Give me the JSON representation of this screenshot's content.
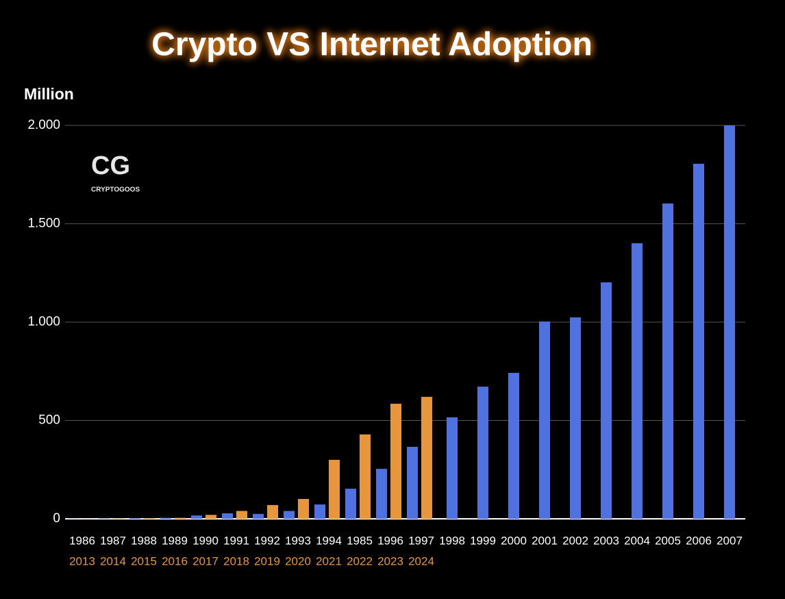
{
  "chart_data": {
    "type": "bar",
    "title": "Crypto VS Internet Adoption",
    "y_label": "Million",
    "watermark": {
      "mark": "CG",
      "text": "CRYPTOGOOS"
    },
    "categories": [
      "1986",
      "1987",
      "1988",
      "1989",
      "1990",
      "1991",
      "1992",
      "1993",
      "1994",
      "1985",
      "1996",
      "1997",
      "1998",
      "1999",
      "2000",
      "2001",
      "2002",
      "2003",
      "2004",
      "2005",
      "2006",
      "2007"
    ],
    "secondary_categories": [
      "2013",
      "2014",
      "2015",
      "2016",
      "2017",
      "2018",
      "2019",
      "2020",
      "2021",
      "2022",
      "2023",
      "2024",
      null,
      null,
      null,
      null,
      null,
      null,
      null,
      null,
      null,
      null
    ],
    "series": [
      {
        "color": "#4f72e0",
        "label_color": "#ffffff",
        "values": [
          1,
          2,
          3,
          5,
          17,
          28,
          25,
          40,
          73,
          153,
          254,
          366,
          516,
          672,
          742,
          1003,
          1024,
          1202,
          1401,
          1603,
          1805,
          2000
        ]
      },
      {
        "color": "#e8963c",
        "label_color": "#e8963c",
        "values": [
          1,
          2,
          3,
          5,
          20,
          40,
          70,
          101,
          300,
          429,
          585,
          620,
          null,
          null,
          null,
          null,
          null,
          null,
          null,
          null,
          null,
          null
        ]
      }
    ],
    "ylim": [
      0,
      2000
    ],
    "yticks": [
      0,
      500,
      {
        "value": 1000,
        "label": "1.000"
      },
      {
        "value": 1500,
        "label": "1.500"
      },
      {
        "value": 2000,
        "label": "2.000"
      }
    ],
    "grid": true
  }
}
